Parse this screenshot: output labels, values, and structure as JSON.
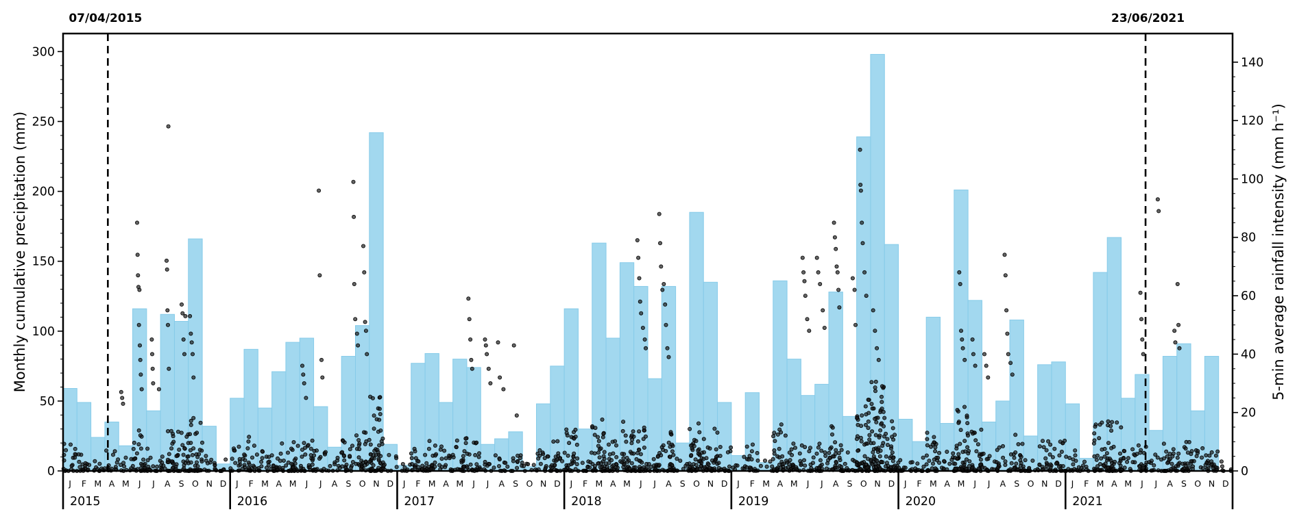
{
  "chart_data": {
    "type": "bar",
    "series_types": [
      "monthly bar",
      "scatter"
    ],
    "x_unit": "month",
    "x_start": "2015-01",
    "x_end": "2021-12",
    "ylabel": "Monthly cumulative precipitation (mm)",
    "ylim": [
      0,
      300
    ],
    "yticks": [
      0,
      50,
      100,
      150,
      200,
      250,
      300
    ],
    "y2label": "5-min average rainfall intensity (mm h⁻¹)",
    "y2lim": [
      0,
      140
    ],
    "y2ticks": [
      0,
      20,
      40,
      60,
      80,
      100,
      120,
      140
    ],
    "month_labels": [
      "J",
      "F",
      "M",
      "A",
      "M",
      "J",
      "J",
      "A",
      "S",
      "O",
      "N",
      "D"
    ],
    "years": [
      "2015",
      "2016",
      "2017",
      "2018",
      "2019",
      "2020",
      "2021"
    ],
    "markers": [
      {
        "date": "2015-04-07",
        "label": "07/04/2015"
      },
      {
        "date": "2021-06-23",
        "label": "23/06/2021"
      }
    ],
    "colors": {
      "bars": "#a2d8ef",
      "bar_edge": "#86cbe9",
      "points": "#000000"
    },
    "monthly_precip": [
      [
        "2015-01",
        59
      ],
      [
        "2015-02",
        49
      ],
      [
        "2015-03",
        24
      ],
      [
        "2015-04",
        35
      ],
      [
        "2015-05",
        18
      ],
      [
        "2015-06",
        116
      ],
      [
        "2015-07",
        43
      ],
      [
        "2015-08",
        112
      ],
      [
        "2015-09",
        107
      ],
      [
        "2015-10",
        166
      ],
      [
        "2015-11",
        32
      ],
      [
        "2015-12",
        5
      ],
      [
        "2016-01",
        52
      ],
      [
        "2016-02",
        87
      ],
      [
        "2016-03",
        45
      ],
      [
        "2016-04",
        71
      ],
      [
        "2016-05",
        92
      ],
      [
        "2016-06",
        95
      ],
      [
        "2016-07",
        46
      ],
      [
        "2016-08",
        17
      ],
      [
        "2016-09",
        82
      ],
      [
        "2016-10",
        104
      ],
      [
        "2016-11",
        242
      ],
      [
        "2016-12",
        19
      ],
      [
        "2017-01",
        4
      ],
      [
        "2017-02",
        77
      ],
      [
        "2017-03",
        84
      ],
      [
        "2017-04",
        49
      ],
      [
        "2017-05",
        80
      ],
      [
        "2017-06",
        74
      ],
      [
        "2017-07",
        19
      ],
      [
        "2017-08",
        23
      ],
      [
        "2017-09",
        28
      ],
      [
        "2017-10",
        3
      ],
      [
        "2017-11",
        48
      ],
      [
        "2017-12",
        75
      ],
      [
        "2018-01",
        116
      ],
      [
        "2018-02",
        30
      ],
      [
        "2018-03",
        163
      ],
      [
        "2018-04",
        95
      ],
      [
        "2018-05",
        149
      ],
      [
        "2018-06",
        132
      ],
      [
        "2018-07",
        66
      ],
      [
        "2018-08",
        132
      ],
      [
        "2018-09",
        20
      ],
      [
        "2018-10",
        185
      ],
      [
        "2018-11",
        135
      ],
      [
        "2018-12",
        49
      ],
      [
        "2019-01",
        11
      ],
      [
        "2019-02",
        56
      ],
      [
        "2019-03",
        6
      ],
      [
        "2019-04",
        136
      ],
      [
        "2019-05",
        80
      ],
      [
        "2019-06",
        54
      ],
      [
        "2019-07",
        62
      ],
      [
        "2019-08",
        128
      ],
      [
        "2019-09",
        39
      ],
      [
        "2019-10",
        239
      ],
      [
        "2019-11",
        298
      ],
      [
        "2019-12",
        162
      ],
      [
        "2020-01",
        37
      ],
      [
        "2020-02",
        21
      ],
      [
        "2020-03",
        110
      ],
      [
        "2020-04",
        34
      ],
      [
        "2020-05",
        201
      ],
      [
        "2020-06",
        122
      ],
      [
        "2020-07",
        35
      ],
      [
        "2020-08",
        50
      ],
      [
        "2020-09",
        108
      ],
      [
        "2020-10",
        25
      ],
      [
        "2020-11",
        76
      ],
      [
        "2020-12",
        78
      ],
      [
        "2021-01",
        48
      ],
      [
        "2021-02",
        9
      ],
      [
        "2021-03",
        142
      ],
      [
        "2021-04",
        167
      ],
      [
        "2021-05",
        52
      ],
      [
        "2021-06",
        69
      ],
      [
        "2021-07",
        29
      ],
      [
        "2021-08",
        82
      ],
      [
        "2021-09",
        91
      ],
      [
        "2021-10",
        43
      ],
      [
        "2021-11",
        82
      ],
      [
        "2021-12",
        0
      ]
    ],
    "intensity_points": [
      [
        "2015-05-06",
        27
      ],
      [
        "2015-05-08",
        25
      ],
      [
        "2015-05-10",
        23
      ],
      [
        "2015-06-10",
        85
      ],
      [
        "2015-06-11",
        74
      ],
      [
        "2015-06-12",
        67
      ],
      [
        "2015-06-13",
        63
      ],
      [
        "2015-06-15",
        62
      ],
      [
        "2015-06-14",
        50
      ],
      [
        "2015-06-16",
        43
      ],
      [
        "2015-06-17",
        38
      ],
      [
        "2015-06-18",
        33
      ],
      [
        "2015-06-20",
        28
      ],
      [
        "2015-07-12",
        45
      ],
      [
        "2015-07-13",
        40
      ],
      [
        "2015-07-14",
        35
      ],
      [
        "2015-07-15",
        30
      ],
      [
        "2015-07-28",
        28
      ],
      [
        "2015-08-18",
        118
      ],
      [
        "2015-08-14",
        72
      ],
      [
        "2015-08-15",
        69
      ],
      [
        "2015-08-16",
        55
      ],
      [
        "2015-08-17",
        50
      ],
      [
        "2015-08-19",
        35
      ],
      [
        "2015-09-16",
        57
      ],
      [
        "2015-09-18",
        54
      ],
      [
        "2015-09-24",
        53
      ],
      [
        "2015-09-20",
        45
      ],
      [
        "2015-09-22",
        40
      ],
      [
        "2015-10-04",
        53
      ],
      [
        "2015-10-06",
        47
      ],
      [
        "2015-10-08",
        44
      ],
      [
        "2015-10-10",
        40
      ],
      [
        "2015-10-12",
        32
      ],
      [
        "2016-06-06",
        36
      ],
      [
        "2016-06-08",
        33
      ],
      [
        "2016-06-10",
        30
      ],
      [
        "2016-06-14",
        25
      ],
      [
        "2016-07-12",
        96
      ],
      [
        "2016-07-14",
        67
      ],
      [
        "2016-07-18",
        38
      ],
      [
        "2016-07-20",
        32
      ],
      [
        "2016-09-26",
        99
      ],
      [
        "2016-09-27",
        87
      ],
      [
        "2016-09-28",
        64
      ],
      [
        "2016-09-30",
        52
      ],
      [
        "2016-10-04",
        47
      ],
      [
        "2016-10-06",
        43
      ],
      [
        "2016-10-18",
        77
      ],
      [
        "2016-10-20",
        68
      ],
      [
        "2016-10-22",
        51
      ],
      [
        "2016-10-24",
        48
      ],
      [
        "2016-10-26",
        40
      ],
      [
        "2017-06-04",
        59
      ],
      [
        "2017-06-06",
        52
      ],
      [
        "2017-06-08",
        45
      ],
      [
        "2017-06-10",
        38
      ],
      [
        "2017-06-12",
        35
      ],
      [
        "2017-07-10",
        45
      ],
      [
        "2017-07-12",
        43
      ],
      [
        "2017-07-14",
        40
      ],
      [
        "2017-07-18",
        35
      ],
      [
        "2017-07-22",
        30
      ],
      [
        "2017-08-08",
        44
      ],
      [
        "2017-08-12",
        32
      ],
      [
        "2017-08-20",
        28
      ],
      [
        "2017-09-12",
        43
      ],
      [
        "2017-09-18",
        19
      ],
      [
        "2018-06-08",
        79
      ],
      [
        "2018-06-10",
        73
      ],
      [
        "2018-06-12",
        66
      ],
      [
        "2018-06-14",
        58
      ],
      [
        "2018-06-16",
        54
      ],
      [
        "2018-06-20",
        49
      ],
      [
        "2018-06-24",
        45
      ],
      [
        "2018-06-26",
        42
      ],
      [
        "2018-07-26",
        88
      ],
      [
        "2018-07-28",
        78
      ],
      [
        "2018-07-30",
        70
      ],
      [
        "2018-08-02",
        62
      ],
      [
        "2018-08-05",
        64
      ],
      [
        "2018-08-08",
        57
      ],
      [
        "2018-08-10",
        50
      ],
      [
        "2018-08-13",
        42
      ],
      [
        "2018-08-16",
        39
      ],
      [
        "2019-06-04",
        73
      ],
      [
        "2019-06-06",
        68
      ],
      [
        "2019-06-08",
        65
      ],
      [
        "2019-06-10",
        60
      ],
      [
        "2019-06-14",
        52
      ],
      [
        "2019-06-18",
        48
      ],
      [
        "2019-07-05",
        73
      ],
      [
        "2019-07-08",
        68
      ],
      [
        "2019-07-12",
        64
      ],
      [
        "2019-07-18",
        55
      ],
      [
        "2019-07-22",
        49
      ],
      [
        "2019-08-12",
        85
      ],
      [
        "2019-08-14",
        80
      ],
      [
        "2019-08-16",
        76
      ],
      [
        "2019-08-18",
        70
      ],
      [
        "2019-08-20",
        68
      ],
      [
        "2019-08-22",
        62
      ],
      [
        "2019-08-24",
        56
      ],
      [
        "2019-09-22",
        66
      ],
      [
        "2019-09-26",
        62
      ],
      [
        "2019-09-28",
        50
      ],
      [
        "2019-10-08",
        110
      ],
      [
        "2019-10-09",
        98
      ],
      [
        "2019-10-10",
        96
      ],
      [
        "2019-10-12",
        85
      ],
      [
        "2019-10-14",
        78
      ],
      [
        "2019-10-18",
        68
      ],
      [
        "2019-10-22",
        60
      ],
      [
        "2019-11-06",
        55
      ],
      [
        "2019-11-10",
        48
      ],
      [
        "2019-11-14",
        42
      ],
      [
        "2019-11-18",
        38
      ],
      [
        "2020-05-12",
        68
      ],
      [
        "2020-05-14",
        64
      ],
      [
        "2020-05-16",
        48
      ],
      [
        "2020-05-18",
        45
      ],
      [
        "2020-05-20",
        42
      ],
      [
        "2020-05-24",
        38
      ],
      [
        "2020-06-10",
        45
      ],
      [
        "2020-06-12",
        40
      ],
      [
        "2020-06-16",
        36
      ],
      [
        "2020-07-06",
        40
      ],
      [
        "2020-07-10",
        36
      ],
      [
        "2020-07-14",
        32
      ],
      [
        "2020-08-20",
        74
      ],
      [
        "2020-08-22",
        67
      ],
      [
        "2020-08-24",
        55
      ],
      [
        "2020-08-26",
        47
      ],
      [
        "2020-08-28",
        40
      ],
      [
        "2020-09-02",
        37
      ],
      [
        "2020-09-06",
        33
      ],
      [
        "2021-06-12",
        61
      ],
      [
        "2021-06-14",
        52
      ],
      [
        "2021-06-16",
        45
      ],
      [
        "2021-06-18",
        40
      ],
      [
        "2021-07-20",
        93
      ],
      [
        "2021-07-22",
        89
      ],
      [
        "2021-08-26",
        48
      ],
      [
        "2021-08-28",
        44
      ],
      [
        "2021-09-02",
        64
      ],
      [
        "2021-09-04",
        50
      ],
      [
        "2021-09-06",
        42
      ]
    ]
  }
}
